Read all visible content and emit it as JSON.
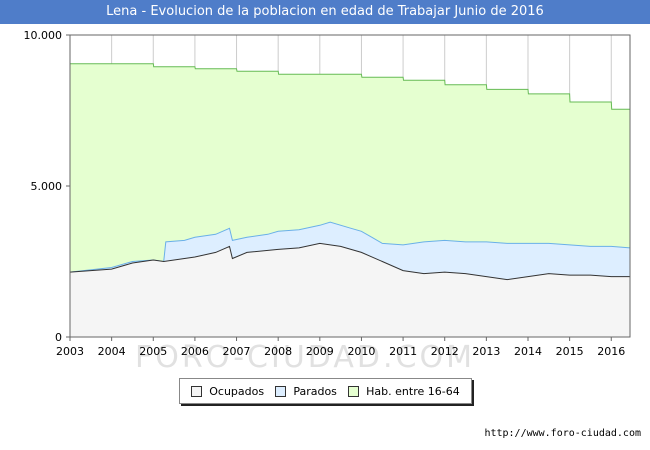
{
  "title": "Lena - Evolucion de la poblacion en edad de Trabajar Junio de 2016",
  "watermark": "FORO-CIUDAD.COM",
  "source_url": "http://www.foro-ciudad.com",
  "colors": {
    "title_bg": "#4f7dc9",
    "ocupados_fill": "#f5f5f5",
    "ocupados_line": "#333333",
    "parados_fill": "#ddeeff",
    "parados_line": "#6ab0e8",
    "hab_fill": "#e5ffd0",
    "hab_line": "#66bb55",
    "grid": "#cccccc"
  },
  "chart_data": {
    "type": "area",
    "xlim": [
      2003,
      2016.45
    ],
    "ylim": [
      0,
      10000
    ],
    "x_ticks": [
      2003,
      2004,
      2005,
      2006,
      2007,
      2008,
      2009,
      2010,
      2011,
      2012,
      2013,
      2014,
      2015,
      2016
    ],
    "x_tick_labels": [
      "2003",
      "2004",
      "2005",
      "2006",
      "2007",
      "2008",
      "2009",
      "2010",
      "2011",
      "2012",
      "2013",
      "2014",
      "2015",
      "2016"
    ],
    "y_ticks": [
      0,
      5000,
      10000
    ],
    "y_tick_labels": [
      "0",
      "5.000",
      "10.000"
    ],
    "grid": true,
    "legend_position": "bottom",
    "legend": [
      "Ocupados",
      "Parados",
      "Hab. entre 16-64"
    ],
    "series": [
      {
        "name": "Hab. entre 16-64",
        "points": [
          [
            2003,
            9050
          ],
          [
            2004,
            9050
          ],
          [
            2005,
            9050
          ],
          [
            2005.01,
            8950
          ],
          [
            2006,
            8950
          ],
          [
            2006.01,
            8880
          ],
          [
            2007,
            8880
          ],
          [
            2007.01,
            8800
          ],
          [
            2008,
            8800
          ],
          [
            2008.01,
            8700
          ],
          [
            2009,
            8700
          ],
          [
            2010,
            8700
          ],
          [
            2010.01,
            8600
          ],
          [
            2011,
            8600
          ],
          [
            2011.01,
            8500
          ],
          [
            2012,
            8500
          ],
          [
            2012.01,
            8350
          ],
          [
            2013,
            8350
          ],
          [
            2013.01,
            8200
          ],
          [
            2014,
            8200
          ],
          [
            2014.01,
            8050
          ],
          [
            2015,
            8050
          ],
          [
            2015.01,
            7780
          ],
          [
            2016,
            7780
          ],
          [
            2016.01,
            7540
          ],
          [
            2016.45,
            7540
          ]
        ]
      },
      {
        "name": "Parados",
        "points": [
          [
            2003,
            2150
          ],
          [
            2004,
            2300
          ],
          [
            2004.5,
            2500
          ],
          [
            2005,
            2550
          ],
          [
            2005.25,
            2500
          ],
          [
            2005.3,
            3150
          ],
          [
            2005.75,
            3200
          ],
          [
            2006,
            3300
          ],
          [
            2006.5,
            3400
          ],
          [
            2006.83,
            3600
          ],
          [
            2006.9,
            3200
          ],
          [
            2007.25,
            3300
          ],
          [
            2007.75,
            3400
          ],
          [
            2008,
            3500
          ],
          [
            2008.5,
            3550
          ],
          [
            2009,
            3700
          ],
          [
            2009.25,
            3800
          ],
          [
            2009.75,
            3600
          ],
          [
            2010,
            3500
          ],
          [
            2010.25,
            3300
          ],
          [
            2010.5,
            3100
          ],
          [
            2011,
            3050
          ],
          [
            2011.5,
            3150
          ],
          [
            2012,
            3200
          ],
          [
            2012.5,
            3150
          ],
          [
            2013,
            3150
          ],
          [
            2013.5,
            3100
          ],
          [
            2014,
            3100
          ],
          [
            2014.5,
            3100
          ],
          [
            2015,
            3050
          ],
          [
            2015.5,
            3000
          ],
          [
            2016,
            3000
          ],
          [
            2016.45,
            2950
          ]
        ]
      },
      {
        "name": "Ocupados",
        "points": [
          [
            2003,
            2150
          ],
          [
            2004,
            2250
          ],
          [
            2004.5,
            2450
          ],
          [
            2005,
            2550
          ],
          [
            2005.25,
            2500
          ],
          [
            2005.5,
            2550
          ],
          [
            2006,
            2650
          ],
          [
            2006.5,
            2800
          ],
          [
            2006.83,
            3000
          ],
          [
            2006.9,
            2600
          ],
          [
            2007.25,
            2800
          ],
          [
            2008,
            2900
          ],
          [
            2008.5,
            2950
          ],
          [
            2009,
            3100
          ],
          [
            2009.5,
            3000
          ],
          [
            2010,
            2800
          ],
          [
            2010.5,
            2500
          ],
          [
            2011,
            2200
          ],
          [
            2011.5,
            2100
          ],
          [
            2012,
            2150
          ],
          [
            2012.5,
            2100
          ],
          [
            2013,
            2000
          ],
          [
            2013.5,
            1900
          ],
          [
            2014,
            2000
          ],
          [
            2014.5,
            2100
          ],
          [
            2015,
            2050
          ],
          [
            2015.5,
            2050
          ],
          [
            2016,
            2000
          ],
          [
            2016.45,
            2000
          ]
        ]
      }
    ]
  }
}
